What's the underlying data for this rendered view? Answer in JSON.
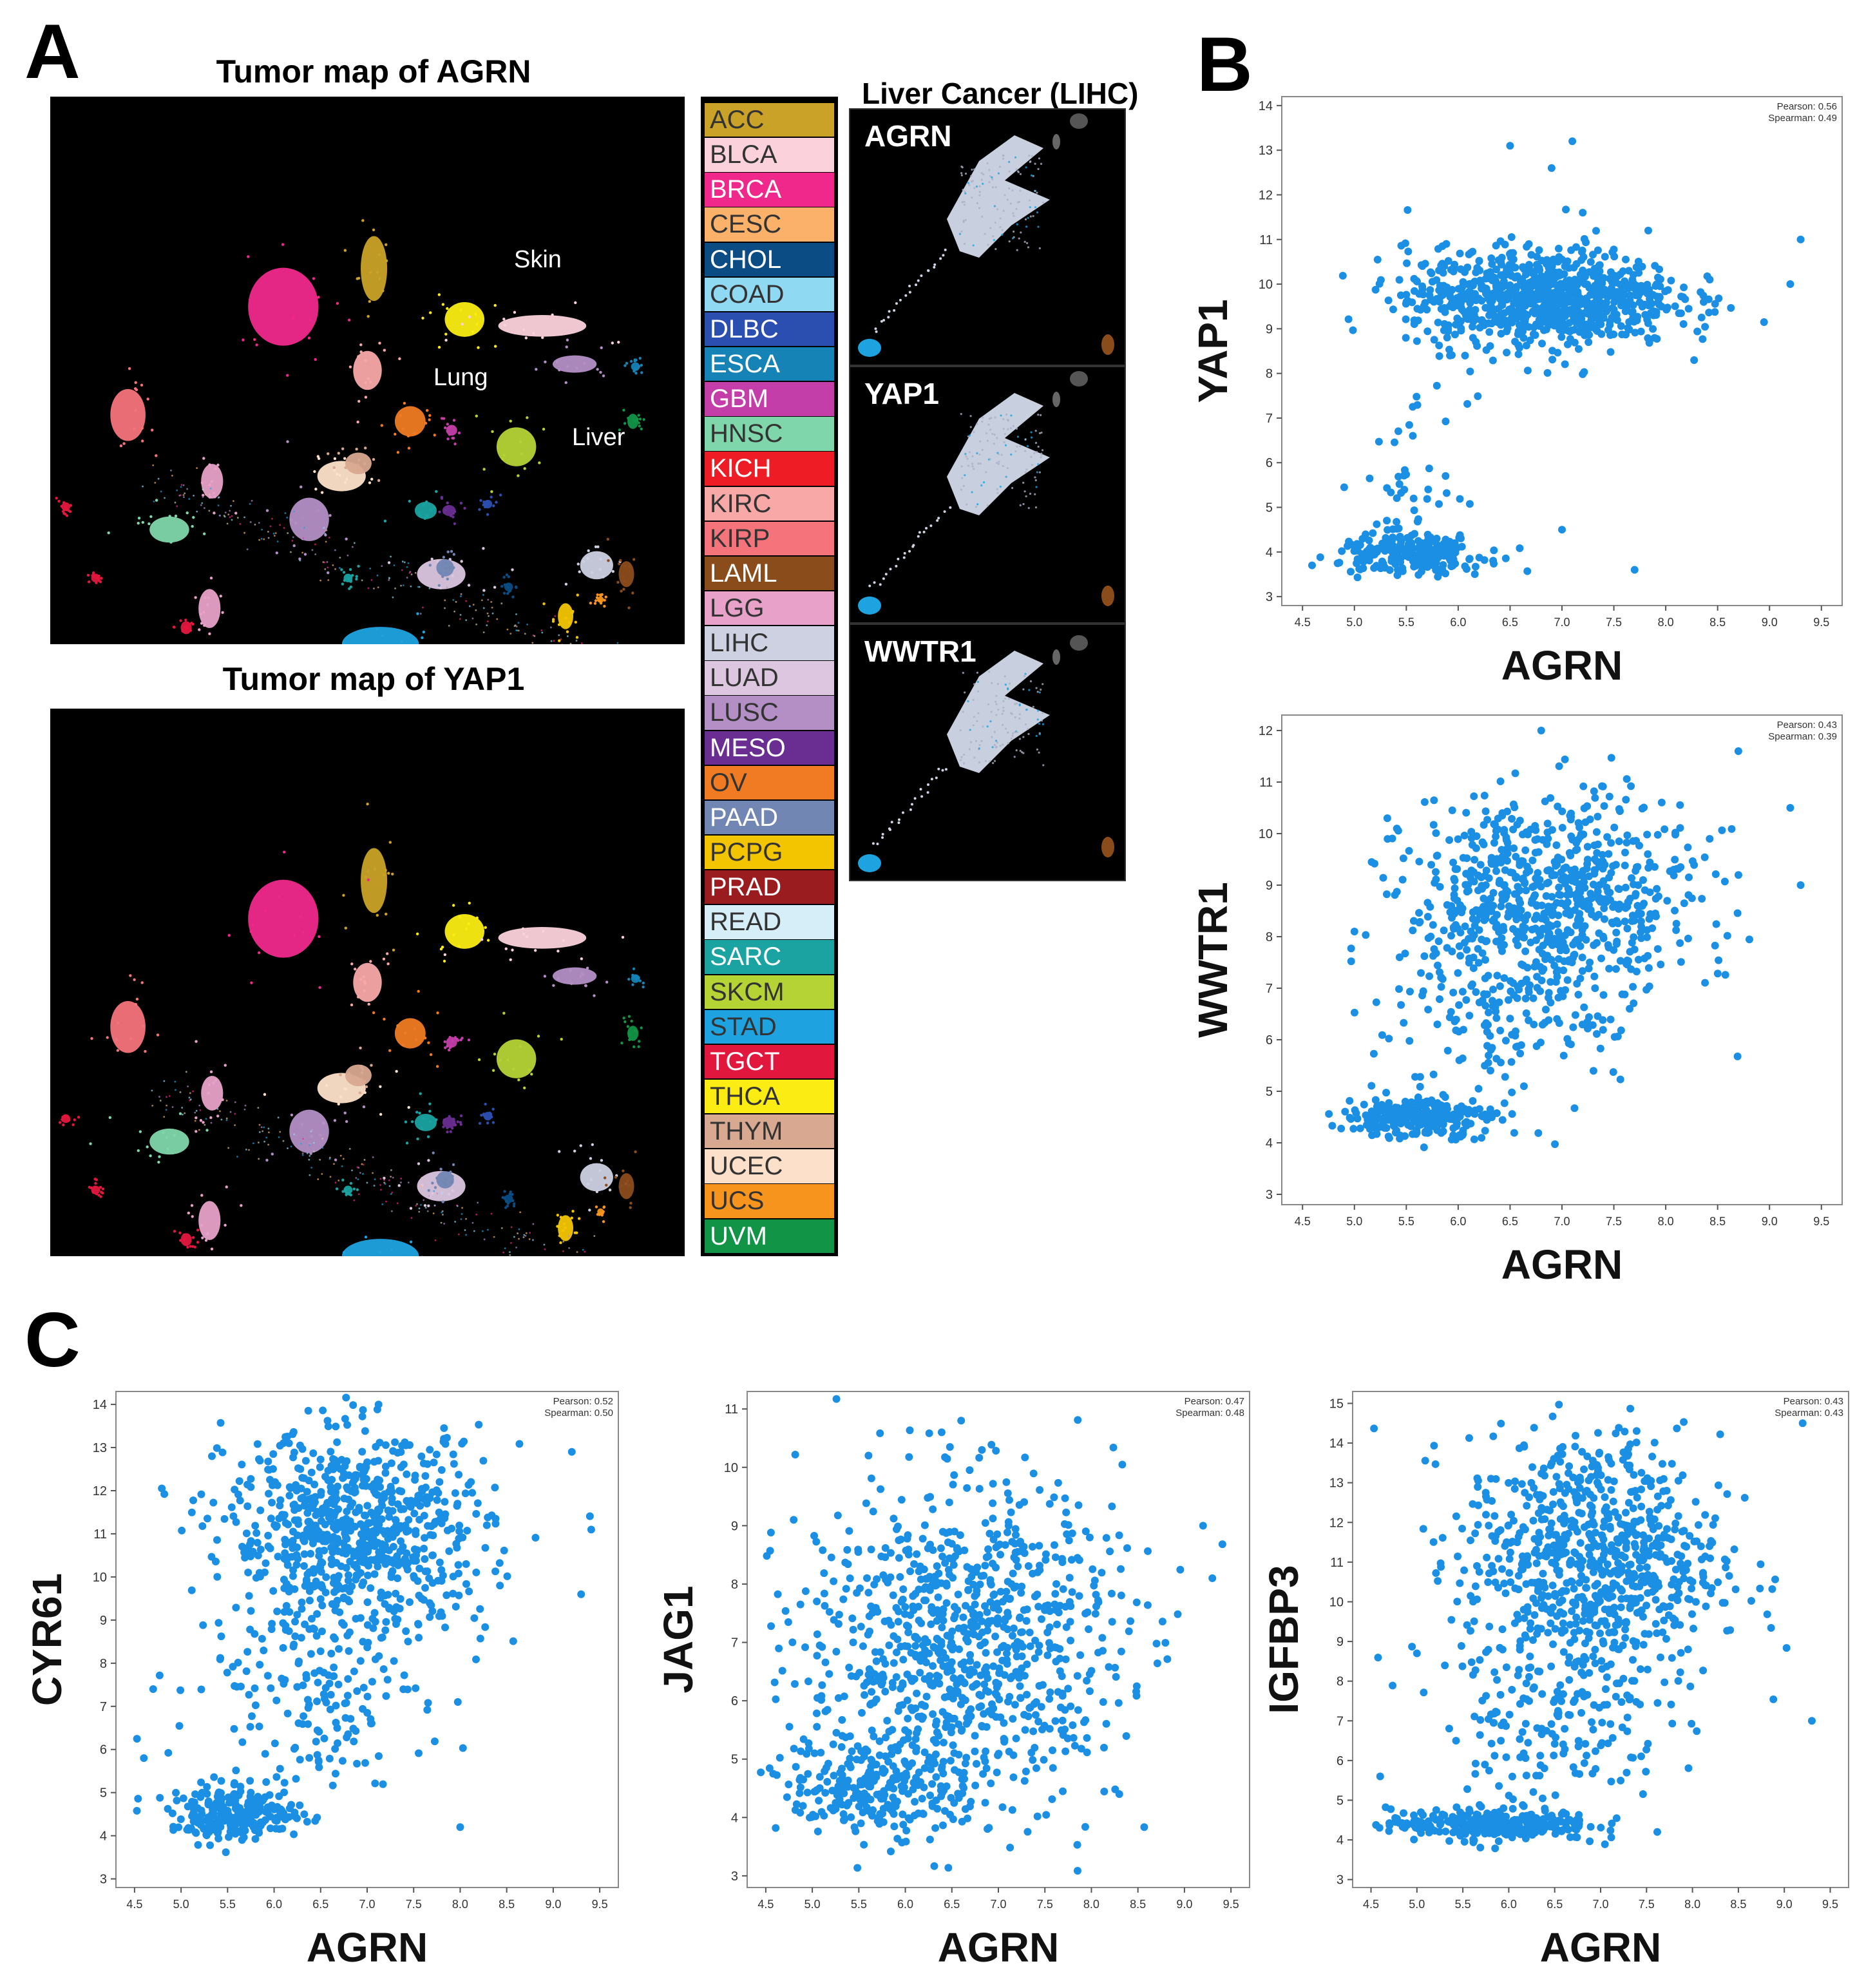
{
  "panels": {
    "a": "A",
    "b": "B",
    "c": "C"
  },
  "maps": {
    "agrn_title": "Tumor map of AGRN",
    "yap1_title": "Tumor map of YAP1",
    "labels": {
      "skin": "Skin",
      "lung": "Lung",
      "liver": "Liver"
    }
  },
  "legend": [
    {
      "code": "ACC",
      "color": "#c9a227",
      "text": "#333333"
    },
    {
      "code": "BLCA",
      "color": "#fbd2dc",
      "text": "#333333"
    },
    {
      "code": "BRCA",
      "color": "#f0288c",
      "text": "#ffffff"
    },
    {
      "code": "CESC",
      "color": "#fbb169",
      "text": "#333333"
    },
    {
      "code": "CHOL",
      "color": "#0a4c83",
      "text": "#ffffff"
    },
    {
      "code": "COAD",
      "color": "#8fd9f2",
      "text": "#333333"
    },
    {
      "code": "DLBC",
      "color": "#2b4fb0",
      "text": "#ffffff"
    },
    {
      "code": "ESCA",
      "color": "#1583b6",
      "text": "#ffffff"
    },
    {
      "code": "GBM",
      "color": "#c33ea8",
      "text": "#ffffff"
    },
    {
      "code": "HNSC",
      "color": "#7fd6ab",
      "text": "#333333"
    },
    {
      "code": "KICH",
      "color": "#ee1d25",
      "text": "#ffffff"
    },
    {
      "code": "KIRC",
      "color": "#f9a8a8",
      "text": "#333333"
    },
    {
      "code": "KIRP",
      "color": "#f5737a",
      "text": "#333333"
    },
    {
      "code": "LAML",
      "color": "#8b4c1c",
      "text": "#ffffff"
    },
    {
      "code": "LGG",
      "color": "#e8a1c8",
      "text": "#333333"
    },
    {
      "code": "LIHC",
      "color": "#cdd1e2",
      "text": "#333333"
    },
    {
      "code": "LUAD",
      "color": "#dcc6e0",
      "text": "#333333"
    },
    {
      "code": "LUSC",
      "color": "#b38fc6",
      "text": "#333333"
    },
    {
      "code": "MESO",
      "color": "#6a2d91",
      "text": "#ffffff"
    },
    {
      "code": "OV",
      "color": "#f07b22",
      "text": "#333333"
    },
    {
      "code": "PAAD",
      "color": "#7186b3",
      "text": "#ffffff"
    },
    {
      "code": "PCPG",
      "color": "#f3c500",
      "text": "#333333"
    },
    {
      "code": "PRAD",
      "color": "#9b1c1f",
      "text": "#ffffff"
    },
    {
      "code": "READ",
      "color": "#d6eef8",
      "text": "#333333"
    },
    {
      "code": "SARC",
      "color": "#1aa3a1",
      "text": "#ffffff"
    },
    {
      "code": "SKCM",
      "color": "#b5d335",
      "text": "#333333"
    },
    {
      "code": "STAD",
      "color": "#1fa3e0",
      "text": "#333333"
    },
    {
      "code": "TGCT",
      "color": "#e2173d",
      "text": "#ffffff"
    },
    {
      "code": "THCA",
      "color": "#fbed13",
      "text": "#333333"
    },
    {
      "code": "THYM",
      "color": "#d8a890",
      "text": "#333333"
    },
    {
      "code": "UCEC",
      "color": "#fde0c9",
      "text": "#333333"
    },
    {
      "code": "UCS",
      "color": "#f7941d",
      "text": "#333333"
    },
    {
      "code": "UVM",
      "color": "#129447",
      "text": "#ffffff"
    }
  ],
  "lihc": {
    "title": "Liver Cancer (LIHC)",
    "genes": [
      "AGRN",
      "YAP1",
      "WWTR1"
    ]
  },
  "point_color": "#1a8fe3",
  "chart_data": [
    {
      "id": "b1",
      "type": "scatter",
      "xlabel": "AGRN",
      "ylabel": "YAP1",
      "pearson": "Pearson: 0.56",
      "spearman": "Spearman: 0.49",
      "xlim": [
        4.3,
        9.7
      ],
      "ylim": [
        2.8,
        14.2
      ],
      "xticks": [
        4.5,
        5.0,
        5.5,
        6.0,
        6.5,
        7.0,
        7.5,
        8.0,
        8.5,
        9.0,
        9.5
      ],
      "yticks": [
        3,
        4,
        5,
        6,
        7,
        8,
        9,
        10,
        11,
        12,
        13,
        14
      ],
      "clusters": [
        {
          "n": 900,
          "cx": 6.8,
          "cy": 9.7,
          "sx": 0.65,
          "sy": 0.55
        },
        {
          "n": 250,
          "cx": 5.55,
          "cy": 3.95,
          "sx": 0.35,
          "sy": 0.22
        },
        {
          "n": 40,
          "cx": 5.6,
          "cy": 5.6,
          "sx": 0.25,
          "sy": 0.9
        }
      ],
      "outliers": [
        [
          9.3,
          11.0
        ],
        [
          9.2,
          10.0
        ],
        [
          6.5,
          13.1
        ],
        [
          7.1,
          13.2
        ],
        [
          6.9,
          12.6
        ],
        [
          7.2,
          11.6
        ],
        [
          7.0,
          4.5
        ],
        [
          7.7,
          3.6
        ]
      ]
    },
    {
      "id": "b2",
      "type": "scatter",
      "xlabel": "AGRN",
      "ylabel": "WWTR1",
      "pearson": "Pearson: 0.43",
      "spearman": "Spearman: 0.39",
      "xlim": [
        4.3,
        9.7
      ],
      "ylim": [
        2.8,
        12.3
      ],
      "xticks": [
        4.5,
        5.0,
        5.5,
        6.0,
        6.5,
        7.0,
        7.5,
        8.0,
        8.5,
        9.0,
        9.5
      ],
      "yticks": [
        3,
        4,
        5,
        6,
        7,
        8,
        9,
        10,
        11,
        12
      ],
      "clusters": [
        {
          "n": 750,
          "cx": 6.9,
          "cy": 8.7,
          "sx": 0.7,
          "sy": 1.0
        },
        {
          "n": 250,
          "cx": 5.6,
          "cy": 4.5,
          "sx": 0.35,
          "sy": 0.2
        },
        {
          "n": 150,
          "cx": 6.3,
          "cy": 6.3,
          "sx": 0.6,
          "sy": 0.9
        }
      ],
      "outliers": [
        [
          9.2,
          10.5
        ],
        [
          9.3,
          9.0
        ],
        [
          8.7,
          11.6
        ],
        [
          6.8,
          12.0
        ],
        [
          5.0,
          8.1
        ]
      ]
    },
    {
      "id": "c1",
      "type": "scatter",
      "xlabel": "AGRN",
      "ylabel": "CYR61",
      "pearson": "Pearson: 0.52",
      "spearman": "Spearman: 0.50",
      "xlim": [
        4.3,
        9.7
      ],
      "ylim": [
        2.8,
        14.3
      ],
      "xticks": [
        4.5,
        5.0,
        5.5,
        6.0,
        6.5,
        7.0,
        7.5,
        8.0,
        8.5,
        9.0,
        9.5
      ],
      "yticks": [
        3,
        4,
        5,
        6,
        7,
        8,
        9,
        10,
        11,
        12,
        13,
        14
      ],
      "clusters": [
        {
          "n": 800,
          "cx": 6.9,
          "cy": 11.0,
          "sx": 0.7,
          "sy": 1.2
        },
        {
          "n": 250,
          "cx": 5.6,
          "cy": 4.5,
          "sx": 0.35,
          "sy": 0.3
        },
        {
          "n": 150,
          "cx": 6.4,
          "cy": 7.2,
          "sx": 0.6,
          "sy": 1.0
        }
      ],
      "outliers": [
        [
          9.2,
          12.9
        ],
        [
          9.3,
          9.6
        ],
        [
          8.0,
          4.2
        ],
        [
          4.7,
          7.4
        ],
        [
          4.6,
          5.8
        ]
      ]
    },
    {
      "id": "c2",
      "type": "scatter",
      "xlabel": "AGRN",
      "ylabel": "JAG1",
      "pearson": "Pearson: 0.47",
      "spearman": "Spearman: 0.48",
      "xlim": [
        4.3,
        9.7
      ],
      "ylim": [
        2.8,
        11.3
      ],
      "xticks": [
        4.5,
        5.0,
        5.5,
        6.0,
        6.5,
        7.0,
        7.5,
        8.0,
        8.5,
        9.0,
        9.5
      ],
      "yticks": [
        3,
        4,
        5,
        6,
        7,
        8,
        9,
        10,
        11
      ],
      "clusters": [
        {
          "n": 900,
          "cx": 6.6,
          "cy": 7.0,
          "sx": 0.85,
          "sy": 1.4
        },
        {
          "n": 250,
          "cx": 5.7,
          "cy": 4.5,
          "sx": 0.5,
          "sy": 0.4
        }
      ],
      "outliers": [
        [
          9.2,
          9.0
        ],
        [
          9.3,
          8.1
        ],
        [
          6.6,
          10.8
        ],
        [
          4.8,
          9.1
        ],
        [
          8.3,
          4.4
        ]
      ]
    },
    {
      "id": "c3",
      "type": "scatter",
      "xlabel": "AGRN",
      "ylabel": "IGFBP3",
      "pearson": "Pearson: 0.43",
      "spearman": "Spearman: 0.43",
      "xlim": [
        4.3,
        9.7
      ],
      "ylim": [
        2.8,
        15.3
      ],
      "xticks": [
        4.5,
        5.0,
        5.5,
        6.0,
        6.5,
        7.0,
        7.5,
        8.0,
        8.5,
        9.0,
        9.5
      ],
      "yticks": [
        3,
        4,
        5,
        6,
        7,
        8,
        9,
        10,
        11,
        12,
        13,
        14,
        15
      ],
      "clusters": [
        {
          "n": 800,
          "cx": 6.9,
          "cy": 11.0,
          "sx": 0.7,
          "sy": 1.6
        },
        {
          "n": 300,
          "cx": 5.8,
          "cy": 4.4,
          "sx": 0.55,
          "sy": 0.2
        },
        {
          "n": 150,
          "cx": 6.5,
          "cy": 7.0,
          "sx": 0.6,
          "sy": 1.0
        }
      ],
      "outliers": [
        [
          9.2,
          14.5
        ],
        [
          9.3,
          7.0
        ],
        [
          5.0,
          8.7
        ],
        [
          4.6,
          5.6
        ]
      ]
    }
  ]
}
